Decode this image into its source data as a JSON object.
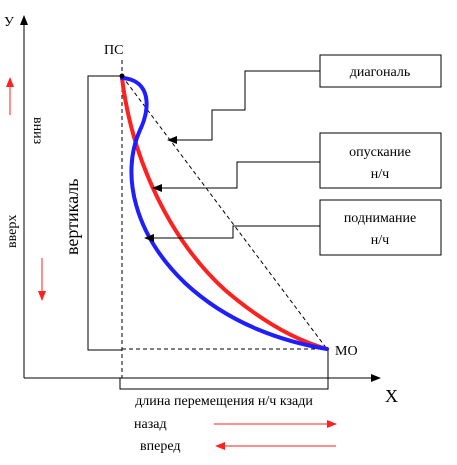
{
  "axes": {
    "x_label": "X",
    "y_label": "У"
  },
  "points": {
    "start": "ПС",
    "end": "МО"
  },
  "callouts": {
    "diagonal": "диагональ",
    "lowering": [
      "опускание",
      "н/ч"
    ],
    "lifting": [
      "поднимание",
      "н/ч"
    ]
  },
  "left_labels": {
    "up": "вверх",
    "down": "вниз",
    "vertical": "вертикаль"
  },
  "bottom_labels": {
    "length": "длина перемещения н/ч кзади",
    "back": "назад",
    "forward": "вперед"
  },
  "colors": {
    "lowering_curve": "#ff2020",
    "lifting_curve": "#1e1eff",
    "arrow_red": "#ff2020",
    "lines": "#000000"
  }
}
